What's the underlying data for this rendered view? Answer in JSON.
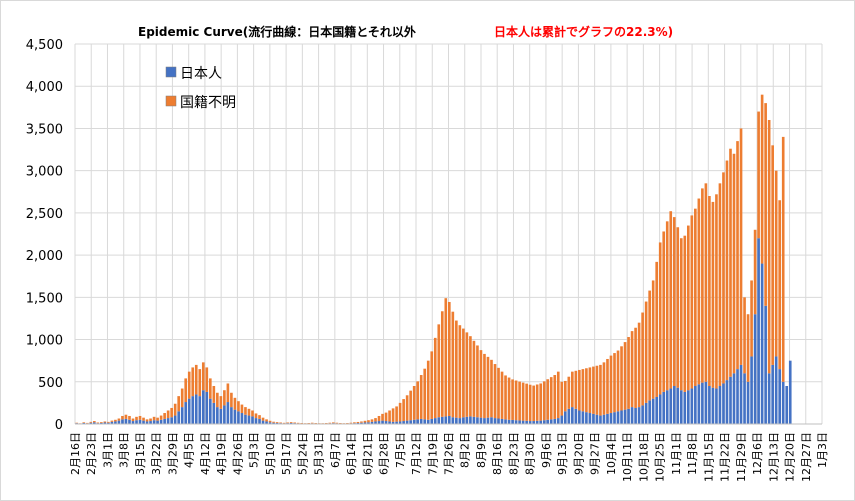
{
  "chart_data": {
    "type": "bar",
    "stacked": true,
    "title": "Epidemic Curve(流行曲線：日本国籍とそれ以外",
    "subtitle": "日本人は累計でグラフの22.3%)",
    "ylim": [
      0,
      4500
    ],
    "yticks": [
      "0",
      "500",
      "1,000",
      "1,500",
      "2,000",
      "2,500",
      "3,000",
      "3,500",
      "4,000",
      "4,500"
    ],
    "ytick_values": [
      0,
      500,
      1000,
      1500,
      2000,
      2500,
      3000,
      3500,
      4000,
      4500
    ],
    "xticks": [
      "2月16日",
      "2月23日",
      "3月1日",
      "3月8日",
      "3月15日",
      "3月22日",
      "3月29日",
      "4月5日",
      "4月12日",
      "4月19日",
      "4月26日",
      "5月3日",
      "5月10日",
      "5月17日",
      "5月24日",
      "5月31日",
      "6月7日",
      "6月14日",
      "6月21日",
      "6月28日",
      "7月5日",
      "7月12日",
      "7月19日",
      "7月26日",
      "8月2日",
      "8月9日",
      "8月16日",
      "8月23日",
      "8月30日",
      "9月6日",
      "9月13日",
      "9月20日",
      "9月27日",
      "10月4日",
      "10月11日",
      "10月18日",
      "10月25日",
      "11月1日",
      "11月8日",
      "11月15日",
      "11月22日",
      "11月29日",
      "12月6日",
      "12月13日",
      "12月20日",
      "12月27日",
      "1月3日"
    ],
    "grid": true,
    "legend_position": "top-left",
    "series": [
      {
        "name": "日本人",
        "color": "#4472c4",
        "values": [
          10,
          5,
          12,
          8,
          15,
          20,
          10,
          12,
          18,
          15,
          25,
          30,
          40,
          55,
          60,
          50,
          35,
          45,
          50,
          40,
          30,
          35,
          45,
          40,
          50,
          60,
          70,
          80,
          100,
          150,
          200,
          260,
          300,
          330,
          350,
          330,
          400,
          380,
          300,
          250,
          200,
          180,
          220,
          260,
          200,
          170,
          150,
          130,
          110,
          100,
          90,
          70,
          60,
          40,
          30,
          20,
          15,
          12,
          10,
          8,
          10,
          12,
          10,
          8,
          6,
          5,
          6,
          8,
          6,
          5,
          5,
          6,
          8,
          10,
          8,
          6,
          5,
          6,
          8,
          10,
          12,
          15,
          18,
          20,
          25,
          30,
          35,
          40,
          35,
          30,
          25,
          28,
          30,
          35,
          40,
          45,
          50,
          55,
          60,
          55,
          50,
          60,
          70,
          80,
          85,
          90,
          95,
          80,
          75,
          70,
          80,
          85,
          90,
          85,
          80,
          75,
          70,
          75,
          80,
          70,
          65,
          60,
          55,
          50,
          48,
          45,
          42,
          40,
          38,
          35,
          35,
          38,
          40,
          45,
          50,
          55,
          60,
          70,
          100,
          150,
          180,
          200,
          180,
          160,
          150,
          140,
          130,
          120,
          110,
          100,
          110,
          120,
          130,
          140,
          150,
          160,
          170,
          180,
          200,
          190,
          200,
          220,
          250,
          280,
          300,
          320,
          350,
          380,
          400,
          420,
          450,
          430,
          400,
          380,
          400,
          420,
          450,
          470,
          490,
          500,
          450,
          430,
          420,
          450,
          480,
          520,
          560,
          600,
          650,
          700,
          600,
          500,
          800,
          1300,
          2200,
          1900,
          1400,
          600,
          700,
          800,
          650,
          500,
          450,
          750
        ],
        "unknown_placeholder": ""
      },
      {
        "name": "国籍不明",
        "color": "#ed7d31",
        "values": [
          5,
          3,
          8,
          5,
          10,
          15,
          8,
          10,
          12,
          10,
          15,
          20,
          25,
          40,
          50,
          45,
          30,
          40,
          45,
          35,
          25,
          30,
          40,
          35,
          50,
          70,
          90,
          110,
          140,
          180,
          220,
          280,
          320,
          340,
          350,
          320,
          330,
          290,
          240,
          200,
          170,
          150,
          180,
          220,
          170,
          140,
          120,
          100,
          90,
          80,
          70,
          55,
          45,
          35,
          25,
          18,
          12,
          10,
          8,
          6,
          8,
          10,
          8,
          6,
          5,
          4,
          5,
          7,
          5,
          4,
          4,
          5,
          7,
          9,
          7,
          5,
          4,
          5,
          7,
          10,
          12,
          15,
          20,
          25,
          30,
          40,
          60,
          80,
          100,
          130,
          160,
          180,
          220,
          260,
          300,
          350,
          400,
          450,
          520,
          600,
          700,
          800,
          950,
          1100,
          1250,
          1400,
          1350,
          1250,
          1150,
          1100,
          1050,
          1000,
          950,
          900,
          850,
          800,
          760,
          720,
          680,
          640,
          600,
          560,
          520,
          500,
          480,
          470,
          460,
          450,
          440,
          430,
          420,
          430,
          440,
          460,
          480,
          500,
          520,
          550,
          400,
          360,
          380,
          420,
          450,
          480,
          500,
          520,
          540,
          560,
          580,
          600,
          620,
          650,
          680,
          700,
          720,
          760,
          800,
          850,
          900,
          950,
          1000,
          1100,
          1200,
          1300,
          1400,
          1600,
          1800,
          1900,
          2000,
          2100,
          2000,
          1900,
          1800,
          1850,
          1950,
          2050,
          2100,
          2200,
          2300,
          2350,
          2250,
          2200,
          2300,
          2400,
          2500,
          2600,
          2700,
          2600,
          2700,
          2800,
          900,
          800,
          900,
          1000,
          1500,
          2000,
          2400,
          3000,
          2600,
          2200,
          2000,
          2900
        ]
      }
    ]
  },
  "legend": {
    "items": [
      {
        "label": "日本人",
        "color": "#4472c4"
      },
      {
        "label": "国籍不明",
        "color": "#ed7d31"
      }
    ]
  }
}
